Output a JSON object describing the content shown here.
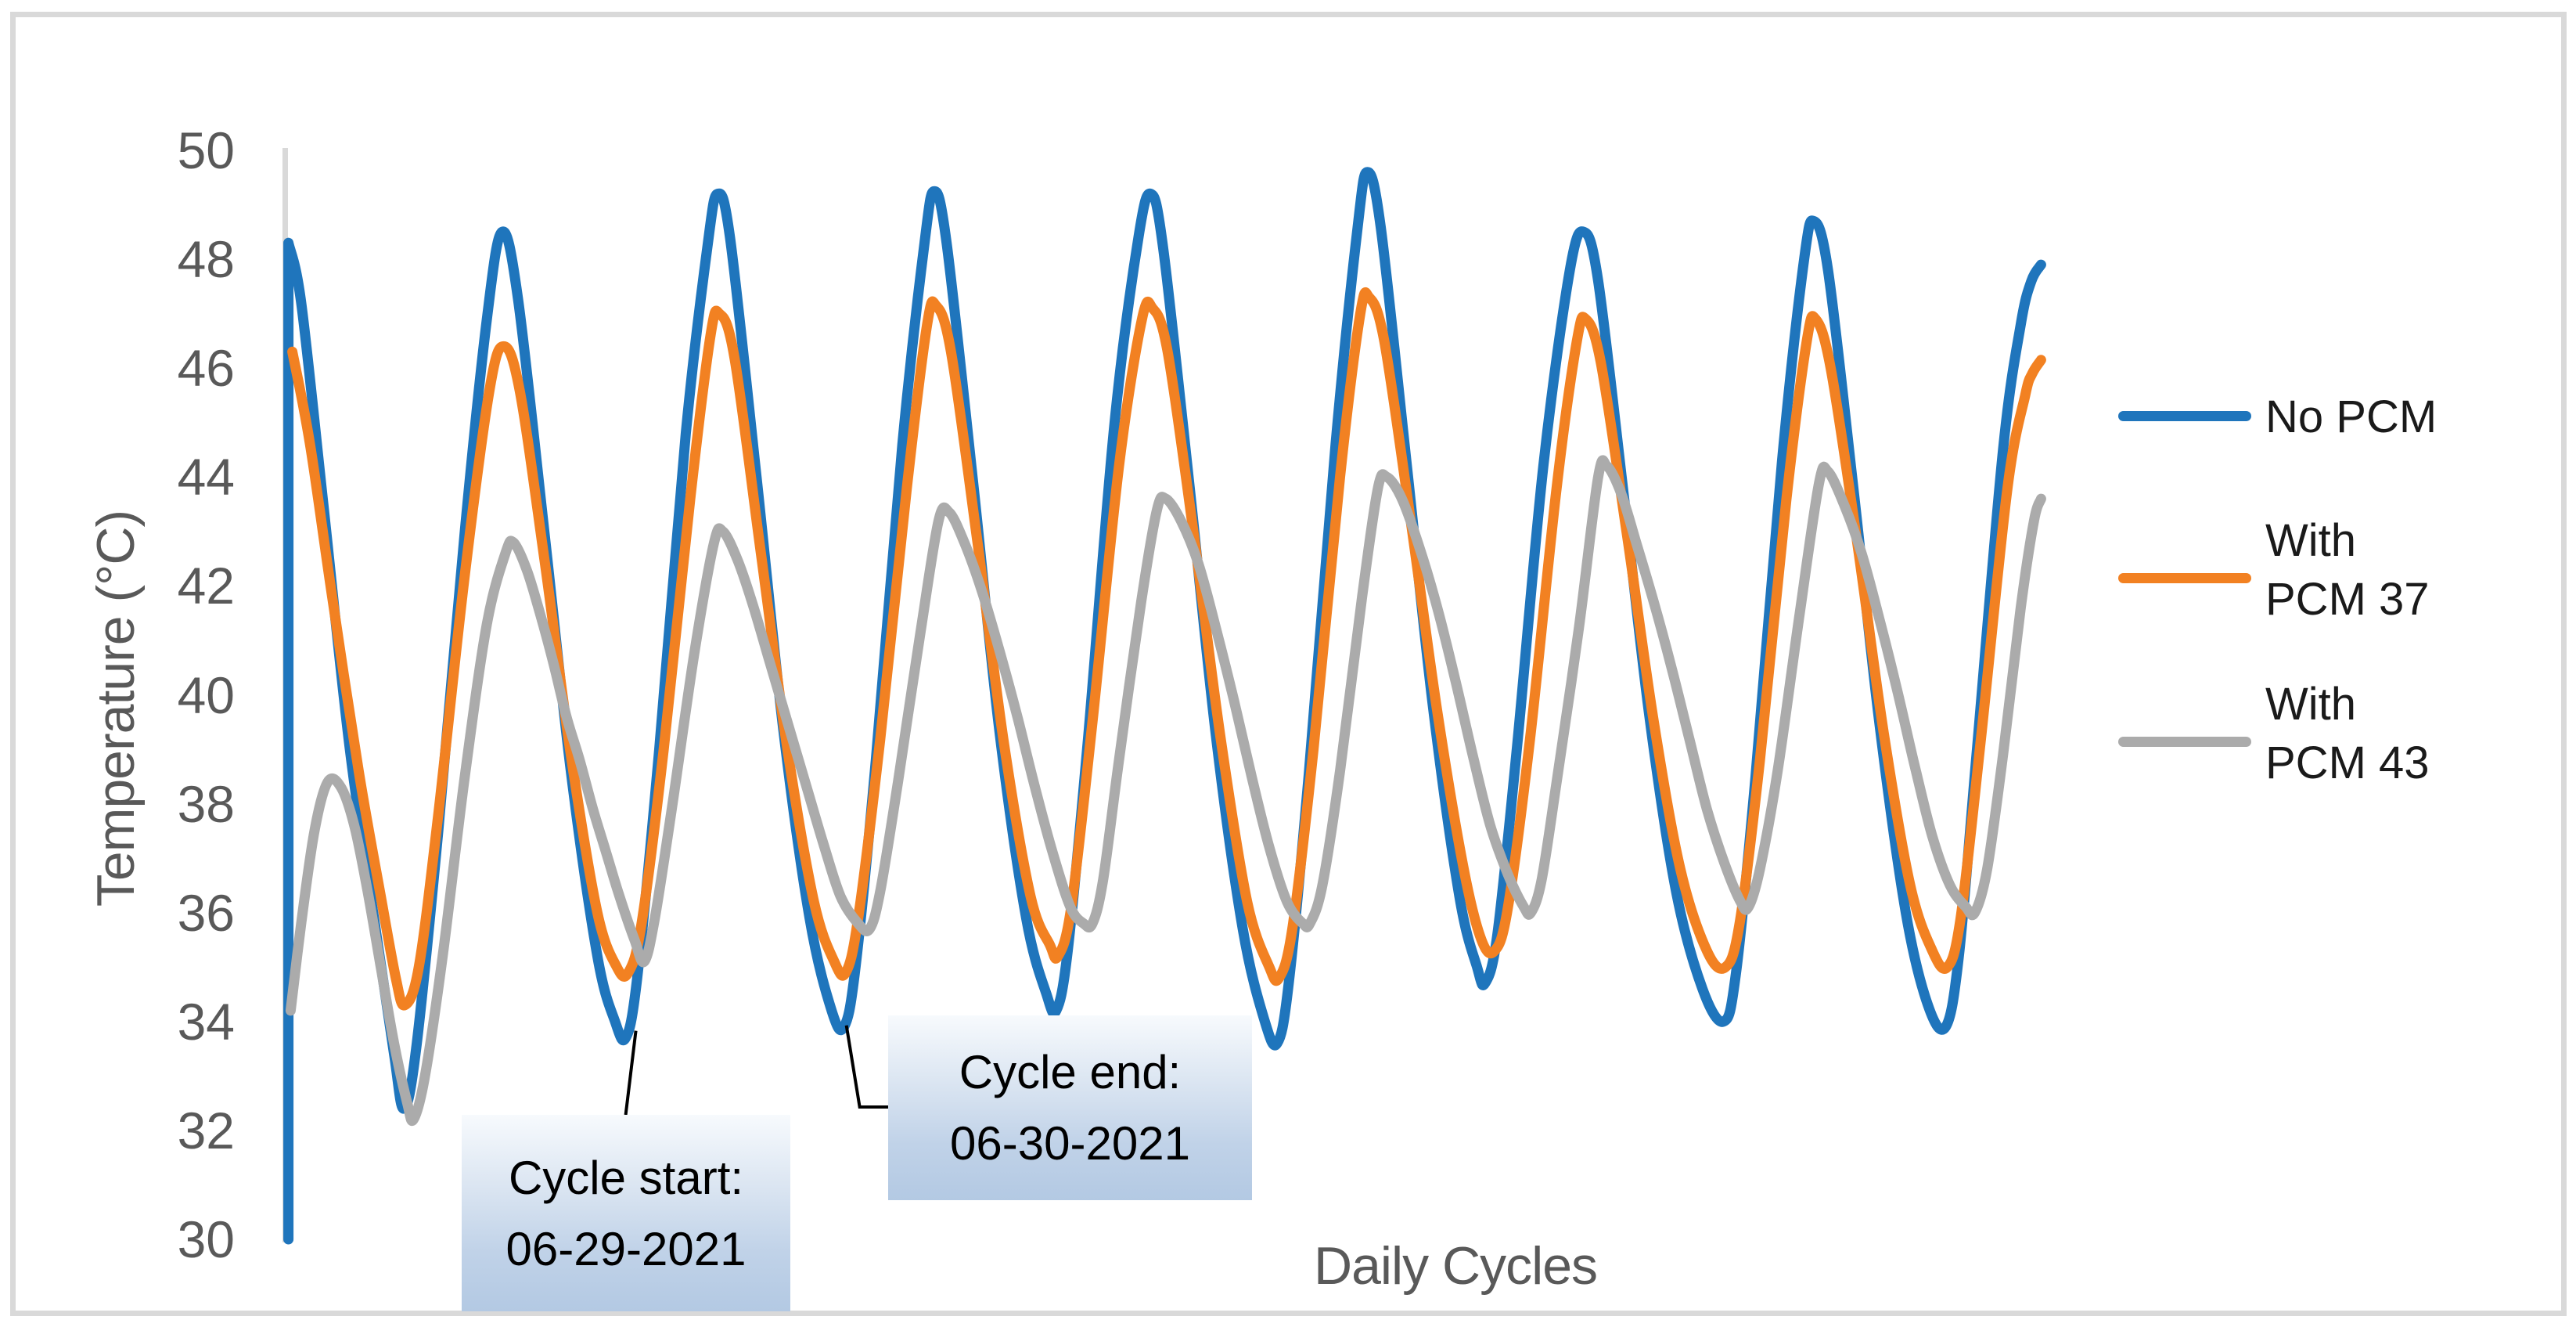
{
  "chart_data": {
    "type": "line",
    "title": "",
    "xlabel": "Daily Cycles",
    "ylabel": "Temperature (°C)",
    "x_unit": "hours (one cycle = one day, 8 daily cycles shown, no x tick labels)",
    "x_range": [
      0,
      198.3
    ],
    "ylim": [
      30,
      50
    ],
    "y_ticks": [
      50,
      48,
      46,
      44,
      42,
      40,
      38,
      36,
      34,
      32,
      30
    ],
    "grid": false,
    "legend_position": "right",
    "background": "#FFFFFF",
    "axis_line_color": "#D9D9D9",
    "axis_text_color": "#595959",
    "frame_color": "#D9D9D9",
    "series": [
      {
        "name": "No PCM",
        "label_lines": [
          "No PCM"
        ],
        "color": "#1F75BC",
        "start_vertical_from": 30.0,
        "points": [
          [
            0.05,
            48.3
          ],
          [
            1.5,
            47.2
          ],
          [
            4,
            43.5
          ],
          [
            7,
            39.0
          ],
          [
            10,
            35.6
          ],
          [
            12,
            33.4
          ],
          [
            13.1,
            32.4
          ],
          [
            14.5,
            33.5
          ],
          [
            17,
            37.5
          ],
          [
            20,
            43.0
          ],
          [
            22.5,
            46.9
          ],
          [
            24.2,
            48.5
          ],
          [
            26,
            47.3
          ],
          [
            29,
            43.0
          ],
          [
            32,
            38.6
          ],
          [
            35,
            35.2
          ],
          [
            37,
            34.0
          ],
          [
            38.2,
            33.7
          ],
          [
            39.5,
            34.8
          ],
          [
            42,
            39.0
          ],
          [
            45,
            44.8
          ],
          [
            47.5,
            48.3
          ],
          [
            48.6,
            49.2
          ],
          [
            50,
            48.4
          ],
          [
            53,
            44.0
          ],
          [
            56,
            39.4
          ],
          [
            59,
            35.9
          ],
          [
            61.5,
            34.2
          ],
          [
            62.9,
            33.9
          ],
          [
            64.2,
            35.0
          ],
          [
            66.5,
            38.8
          ],
          [
            69.5,
            44.6
          ],
          [
            72,
            48.3
          ],
          [
            73.1,
            49.25
          ],
          [
            74.5,
            48.3
          ],
          [
            77.5,
            43.9
          ],
          [
            80.5,
            39.3
          ],
          [
            83.5,
            35.9
          ],
          [
            85.8,
            34.5
          ],
          [
            86.9,
            34.2
          ],
          [
            88.2,
            35.3
          ],
          [
            90.5,
            39.2
          ],
          [
            93.5,
            45.0
          ],
          [
            96.2,
            48.4
          ],
          [
            97.6,
            49.2
          ],
          [
            99,
            48.2
          ],
          [
            102,
            43.8
          ],
          [
            105,
            39.2
          ],
          [
            108,
            35.7
          ],
          [
            110.5,
            34.0
          ],
          [
            111.9,
            33.6
          ],
          [
            113.2,
            34.7
          ],
          [
            115.5,
            38.6
          ],
          [
            118.5,
            44.6
          ],
          [
            121,
            48.6
          ],
          [
            122.1,
            49.6
          ],
          [
            123.6,
            48.6
          ],
          [
            126.5,
            44.3
          ],
          [
            129.5,
            39.8
          ],
          [
            132.5,
            36.3
          ],
          [
            134.5,
            35.0
          ],
          [
            135.4,
            34.7
          ],
          [
            136.8,
            35.6
          ],
          [
            139,
            39.0
          ],
          [
            142,
            44.2
          ],
          [
            145,
            47.8
          ],
          [
            146.6,
            48.5
          ],
          [
            148.2,
            47.6
          ],
          [
            151,
            43.8
          ],
          [
            154,
            39.6
          ],
          [
            157,
            36.4
          ],
          [
            160,
            34.6
          ],
          [
            162.4,
            34.0
          ],
          [
            163.8,
            34.9
          ],
          [
            166,
            38.5
          ],
          [
            169,
            44.3
          ],
          [
            171.5,
            48.0
          ],
          [
            172.6,
            48.7
          ],
          [
            174.2,
            47.8
          ],
          [
            177,
            43.9
          ],
          [
            180,
            39.5
          ],
          [
            183,
            36.0
          ],
          [
            185.5,
            34.3
          ],
          [
            187.5,
            33.9
          ],
          [
            189,
            35.2
          ],
          [
            191,
            38.9
          ],
          [
            194,
            44.5
          ],
          [
            196,
            46.8
          ],
          [
            197.2,
            47.6
          ],
          [
            198.3,
            47.9
          ]
        ]
      },
      {
        "name": "With PCM 37",
        "label_lines": [
          "With",
          "PCM 37"
        ],
        "color": "#F28122",
        "points": [
          [
            0.5,
            46.3
          ],
          [
            2.5,
            44.6
          ],
          [
            5,
            41.8
          ],
          [
            8,
            38.6
          ],
          [
            10.5,
            36.3
          ],
          [
            12.2,
            34.8
          ],
          [
            13.2,
            34.3
          ],
          [
            14.8,
            35.0
          ],
          [
            17,
            37.8
          ],
          [
            20,
            42.2
          ],
          [
            22.8,
            45.6
          ],
          [
            24.4,
            46.4
          ],
          [
            26.2,
            45.6
          ],
          [
            29,
            42.5
          ],
          [
            32,
            38.9
          ],
          [
            35,
            36.0
          ],
          [
            37.2,
            35.0
          ],
          [
            38.5,
            34.9
          ],
          [
            40,
            35.8
          ],
          [
            42.5,
            39.0
          ],
          [
            45.5,
            43.6
          ],
          [
            47.8,
            46.6
          ],
          [
            48.8,
            47.0
          ],
          [
            50.5,
            46.2
          ],
          [
            53.5,
            42.6
          ],
          [
            56.5,
            39.0
          ],
          [
            59.5,
            36.2
          ],
          [
            61.8,
            35.1
          ],
          [
            63.1,
            34.9
          ],
          [
            64.5,
            35.9
          ],
          [
            67,
            39.2
          ],
          [
            70,
            43.8
          ],
          [
            72.3,
            46.8
          ],
          [
            73.3,
            47.15
          ],
          [
            75,
            46.3
          ],
          [
            78,
            42.8
          ],
          [
            81,
            39.1
          ],
          [
            84,
            36.3
          ],
          [
            86.2,
            35.4
          ],
          [
            87.1,
            35.2
          ],
          [
            88.6,
            36.1
          ],
          [
            91,
            39.5
          ],
          [
            94,
            44.2
          ],
          [
            96.6,
            46.9
          ],
          [
            97.8,
            47.1
          ],
          [
            99.5,
            46.3
          ],
          [
            102.5,
            42.9
          ],
          [
            105.5,
            39.2
          ],
          [
            108.5,
            36.2
          ],
          [
            111,
            35.0
          ],
          [
            112.1,
            34.8
          ],
          [
            113.6,
            35.7
          ],
          [
            116,
            39.0
          ],
          [
            119,
            44.0
          ],
          [
            121.3,
            47.0
          ],
          [
            122.3,
            47.3
          ],
          [
            124,
            46.5
          ],
          [
            127,
            43.2
          ],
          [
            130,
            39.7
          ],
          [
            133,
            36.8
          ],
          [
            135,
            35.5
          ],
          [
            136.5,
            35.3
          ],
          [
            138,
            36.1
          ],
          [
            140.5,
            39.2
          ],
          [
            143.5,
            43.8
          ],
          [
            145.8,
            46.5
          ],
          [
            146.8,
            46.9
          ],
          [
            148.5,
            46.1
          ],
          [
            151.5,
            42.9
          ],
          [
            154.5,
            39.5
          ],
          [
            157.5,
            36.8
          ],
          [
            160.5,
            35.3
          ],
          [
            162.6,
            35.0
          ],
          [
            164.2,
            35.8
          ],
          [
            166.5,
            38.8
          ],
          [
            169.5,
            43.6
          ],
          [
            171.8,
            46.5
          ],
          [
            172.8,
            46.9
          ],
          [
            174.5,
            46.0
          ],
          [
            177.5,
            42.8
          ],
          [
            180.5,
            39.3
          ],
          [
            183.5,
            36.5
          ],
          [
            186,
            35.3
          ],
          [
            187.7,
            35.0
          ],
          [
            189.2,
            35.9
          ],
          [
            191.5,
            39.2
          ],
          [
            194.5,
            43.8
          ],
          [
            196.5,
            45.5
          ],
          [
            197.3,
            45.9
          ],
          [
            198.3,
            46.15
          ]
        ]
      },
      {
        "name": "With PCM 43",
        "label_lines": [
          "With",
          "PCM 43"
        ],
        "color": "#ABABAB",
        "points": [
          [
            0.3,
            34.2
          ],
          [
            1.5,
            35.8
          ],
          [
            3,
            37.5
          ],
          [
            4.5,
            38.4
          ],
          [
            6,
            38.3
          ],
          [
            7.5,
            37.6
          ],
          [
            9,
            36.4
          ],
          [
            10.5,
            35.0
          ],
          [
            12,
            33.6
          ],
          [
            13.5,
            32.5
          ],
          [
            14.2,
            32.2
          ],
          [
            15.5,
            33.0
          ],
          [
            17.5,
            35.2
          ],
          [
            20,
            38.5
          ],
          [
            22.5,
            41.3
          ],
          [
            24.6,
            42.6
          ],
          [
            25.5,
            42.8
          ],
          [
            27,
            42.3
          ],
          [
            28.5,
            41.5
          ],
          [
            30,
            40.6
          ],
          [
            31.5,
            39.6
          ],
          [
            33,
            38.8
          ],
          [
            34.5,
            37.9
          ],
          [
            36,
            37.1
          ],
          [
            37.5,
            36.3
          ],
          [
            39.2,
            35.5
          ],
          [
            40.3,
            35.1
          ],
          [
            41.5,
            35.9
          ],
          [
            43.5,
            38.0
          ],
          [
            46,
            40.8
          ],
          [
            48.2,
            42.8
          ],
          [
            49.2,
            43.0
          ],
          [
            50.8,
            42.5
          ],
          [
            52.5,
            41.7
          ],
          [
            54.5,
            40.6
          ],
          [
            56.5,
            39.5
          ],
          [
            58.5,
            38.4
          ],
          [
            60.5,
            37.3
          ],
          [
            62.5,
            36.3
          ],
          [
            64.5,
            35.8
          ],
          [
            65.8,
            35.7
          ],
          [
            67,
            36.4
          ],
          [
            69,
            38.4
          ],
          [
            71.5,
            41.1
          ],
          [
            73.6,
            43.2
          ],
          [
            74.8,
            43.35
          ],
          [
            76.5,
            42.8
          ],
          [
            78.5,
            41.9
          ],
          [
            80.5,
            40.8
          ],
          [
            82.5,
            39.6
          ],
          [
            84.5,
            38.3
          ],
          [
            86.5,
            37.1
          ],
          [
            88.5,
            36.1
          ],
          [
            90,
            35.8
          ],
          [
            91,
            35.8
          ],
          [
            92.2,
            36.6
          ],
          [
            94,
            38.8
          ],
          [
            96.5,
            41.7
          ],
          [
            98.3,
            43.4
          ],
          [
            99.3,
            43.6
          ],
          [
            101,
            43.2
          ],
          [
            103,
            42.4
          ],
          [
            105,
            41.2
          ],
          [
            107,
            39.9
          ],
          [
            109,
            38.5
          ],
          [
            111,
            37.2
          ],
          [
            113,
            36.2
          ],
          [
            114.8,
            35.8
          ],
          [
            115.6,
            35.8
          ],
          [
            117,
            36.5
          ],
          [
            119,
            38.6
          ],
          [
            121.5,
            41.8
          ],
          [
            123.3,
            43.8
          ],
          [
            124.3,
            44.0
          ],
          [
            126,
            43.6
          ],
          [
            128,
            42.7
          ],
          [
            130,
            41.6
          ],
          [
            132,
            40.3
          ],
          [
            134,
            38.9
          ],
          [
            136,
            37.6
          ],
          [
            138,
            36.7
          ],
          [
            139.8,
            36.1
          ],
          [
            140.6,
            36.0
          ],
          [
            141.8,
            36.6
          ],
          [
            143.5,
            38.4
          ],
          [
            146,
            41.2
          ],
          [
            148.2,
            44.0
          ],
          [
            149.2,
            44.2
          ],
          [
            150.8,
            43.7
          ],
          [
            152.5,
            42.8
          ],
          [
            154.5,
            41.7
          ],
          [
            156.5,
            40.5
          ],
          [
            158.5,
            39.2
          ],
          [
            160.5,
            37.9
          ],
          [
            162.5,
            36.9
          ],
          [
            164.3,
            36.2
          ],
          [
            165.2,
            36.1
          ],
          [
            166.5,
            36.8
          ],
          [
            168.5,
            38.6
          ],
          [
            171,
            41.5
          ],
          [
            173.2,
            43.9
          ],
          [
            174.2,
            44.1
          ],
          [
            176,
            43.5
          ],
          [
            178,
            42.6
          ],
          [
            180,
            41.4
          ],
          [
            182,
            40.1
          ],
          [
            184,
            38.7
          ],
          [
            186,
            37.4
          ],
          [
            188,
            36.5
          ],
          [
            189.8,
            36.1
          ],
          [
            190.8,
            36.0
          ],
          [
            192.2,
            36.8
          ],
          [
            194,
            38.9
          ],
          [
            196,
            41.6
          ],
          [
            197.5,
            43.2
          ],
          [
            198.3,
            43.6
          ]
        ]
      }
    ],
    "annotations": [
      {
        "lines": [
          "Cycle start:",
          "06-29-2021"
        ],
        "points_to_t": 38.2,
        "points_to_series": "No PCM",
        "note": "leader line to 2nd trough of No PCM"
      },
      {
        "lines": [
          "Cycle end:",
          "06-30-2021"
        ],
        "points_to_t": 62.9,
        "points_to_series": "No PCM",
        "note": "leader line to 3rd trough of No PCM"
      }
    ]
  }
}
